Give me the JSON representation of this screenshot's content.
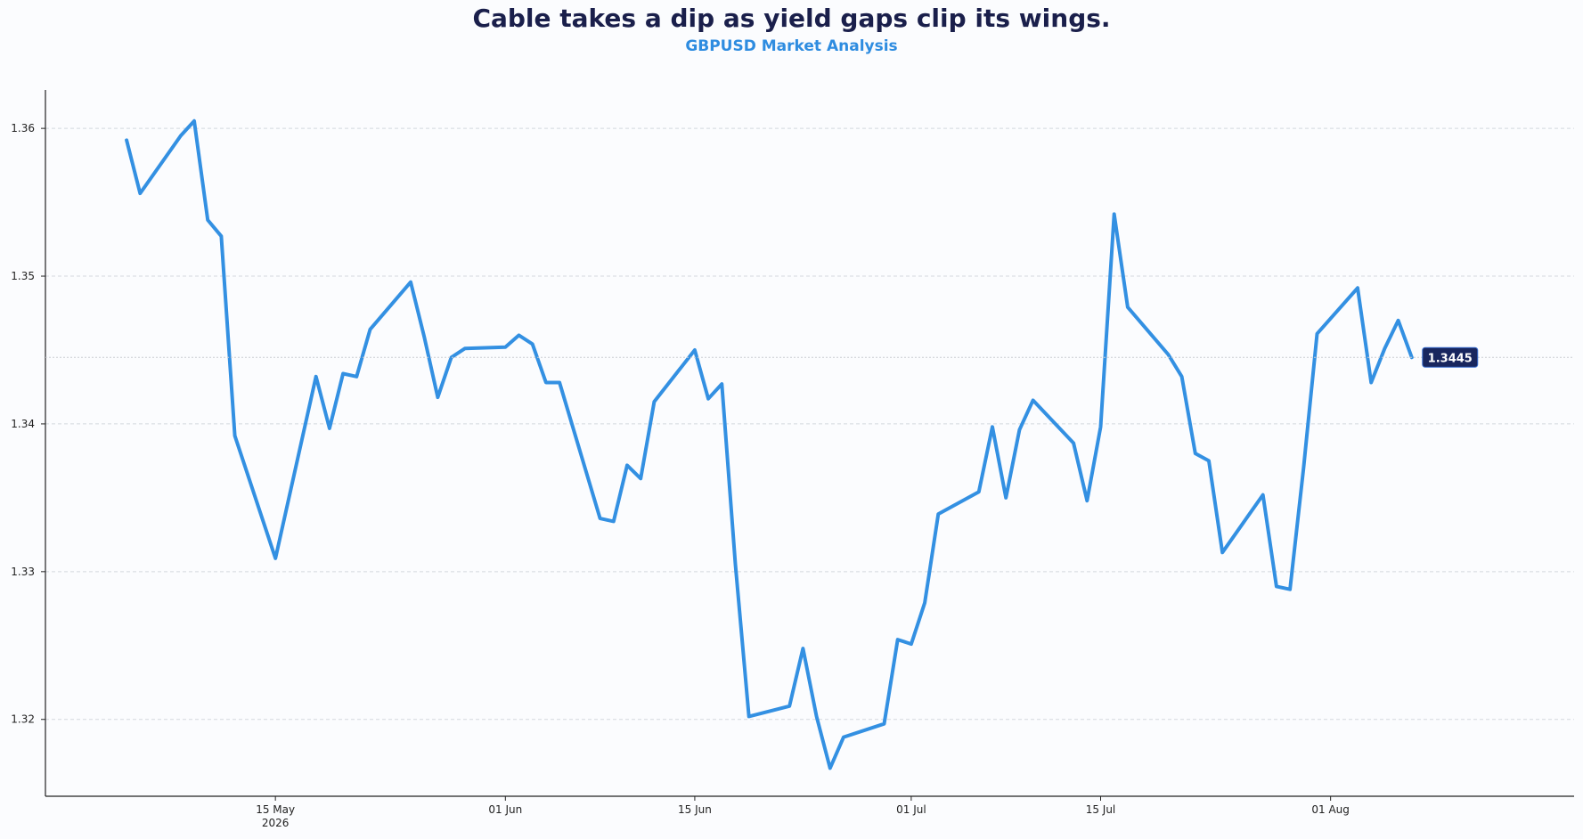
{
  "chart_data": {
    "type": "line",
    "title": "Cable takes a dip as yield gaps clip its wings.",
    "subtitle": "GBPUSD Market Analysis",
    "xlabel": "",
    "ylabel": "",
    "xlim": [
      "2026-04-28",
      "2026-08-19"
    ],
    "ylim": [
      1.3148,
      1.3626
    ],
    "y_ticks": [
      1.32,
      1.33,
      1.34,
      1.35,
      1.36
    ],
    "y_tick_labels": [
      "1.32",
      "1.33",
      "1.34",
      "1.35",
      "1.36"
    ],
    "x_ticks": [
      "2026-05-15",
      "2026-06-01",
      "2026-06-15",
      "2026-07-01",
      "2026-07-15",
      "2026-08-01"
    ],
    "x_tick_labels": [
      "15 May\n2026",
      "01 Jun",
      "15 Jun",
      "01 Jul",
      "15 Jul",
      "01 Aug"
    ],
    "grid": "horizontal dashed",
    "line_color": "#3390e2",
    "last_value_label": "1.3445",
    "series": [
      {
        "name": "",
        "x": [
          "2026-05-04",
          "2026-05-05",
          "2026-05-08",
          "2026-05-09",
          "2026-05-10",
          "2026-05-11",
          "2026-05-12",
          "2026-05-15",
          "2026-05-18",
          "2026-05-19",
          "2026-05-20",
          "2026-05-21",
          "2026-05-22",
          "2026-05-25",
          "2026-05-26",
          "2026-05-27",
          "2026-05-28",
          "2026-05-29",
          "2026-06-01",
          "2026-06-02",
          "2026-06-03",
          "2026-06-04",
          "2026-06-05",
          "2026-06-08",
          "2026-06-09",
          "2026-06-10",
          "2026-06-11",
          "2026-06-12",
          "2026-06-15",
          "2026-06-16",
          "2026-06-17",
          "2026-06-18",
          "2026-06-19",
          "2026-06-22",
          "2026-06-23",
          "2026-06-24",
          "2026-06-25",
          "2026-06-26",
          "2026-06-29",
          "2026-06-30",
          "2026-07-01",
          "2026-07-02",
          "2026-07-03",
          "2026-07-06",
          "2026-07-07",
          "2026-07-08",
          "2026-07-09",
          "2026-07-10",
          "2026-07-13",
          "2026-07-14",
          "2026-07-15",
          "2026-07-16",
          "2026-07-17",
          "2026-07-20",
          "2026-07-21",
          "2026-07-22",
          "2026-07-23",
          "2026-07-24",
          "2026-07-27",
          "2026-07-28",
          "2026-07-29",
          "2026-07-30",
          "2026-07-31",
          "2026-08-03",
          "2026-08-04",
          "2026-08-05",
          "2026-08-06",
          "2026-08-07"
        ],
        "y": [
          1.3592,
          1.3556,
          1.3595,
          1.3605,
          1.3538,
          1.3527,
          1.3392,
          1.3309,
          1.3432,
          1.3397,
          1.3434,
          1.3432,
          1.3464,
          1.3496,
          1.3459,
          1.3418,
          1.3445,
          1.3451,
          1.3452,
          1.346,
          1.3454,
          1.3428,
          1.3428,
          1.3336,
          1.3334,
          1.3372,
          1.3363,
          1.3415,
          1.345,
          1.3417,
          1.3427,
          1.3305,
          1.3202,
          1.3209,
          1.3248,
          1.3202,
          1.3167,
          1.3188,
          1.3197,
          1.3254,
          1.3251,
          1.3279,
          1.3339,
          1.3354,
          1.3398,
          1.335,
          1.3396,
          1.3416,
          1.3387,
          1.3348,
          1.3398,
          1.3542,
          1.3479,
          1.3447,
          1.3432,
          1.338,
          1.3375,
          1.3313,
          1.3352,
          1.329,
          1.3288,
          1.337,
          1.3461,
          1.3492,
          1.3428,
          1.3451,
          1.347,
          1.3445
        ]
      }
    ]
  }
}
